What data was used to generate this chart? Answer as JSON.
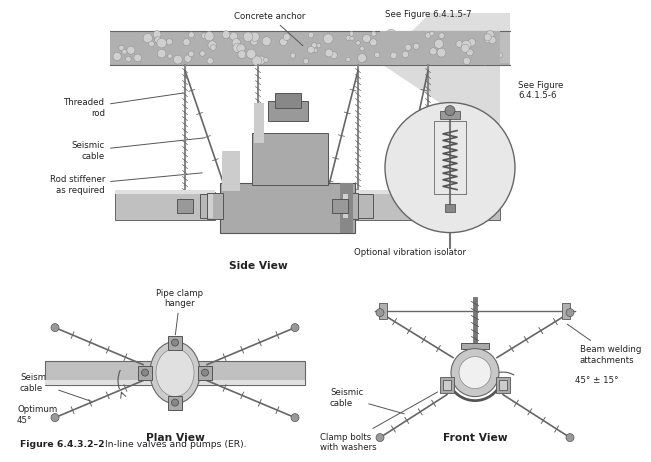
{
  "title": "Figure 6.4.3.2–2",
  "caption": "    In-line valves and pumps (ER).",
  "bg_color": "#ffffff",
  "side_view_label": "Side View",
  "plan_view_label": "Plan View",
  "front_view_label": "Front View",
  "labels": {
    "concrete_anchor": "Concrete anchor",
    "see_fig_7": "See Figure 6.4.1.5-7",
    "see_fig_6": "See Figure\n6.4.1.5-6",
    "threaded_rod": "Threaded\nrod",
    "seismic_cable_sv": "Seismic\ncable",
    "rod_stiffener": "Rod stiffener\nas required",
    "optional_vib": "Optional vibration isolator",
    "seismic_cable_plan": "Seismic\ncable",
    "pipe_clamp": "Pipe clamp\nhanger",
    "optimum_45": "Optimum\n45°",
    "seismic_cable_front": "Seismic\ncable",
    "clamp_bolts": "Clamp bolts\nwith washers",
    "beam_welding": "Beam welding\nattachments",
    "angle_front": "45° ± 15°"
  },
  "text_color": "#222222",
  "line_color": "#444444",
  "pipe_color": "#a0a0a0",
  "concrete_fill": "#b8b8b8",
  "slab_edge": "#888888"
}
